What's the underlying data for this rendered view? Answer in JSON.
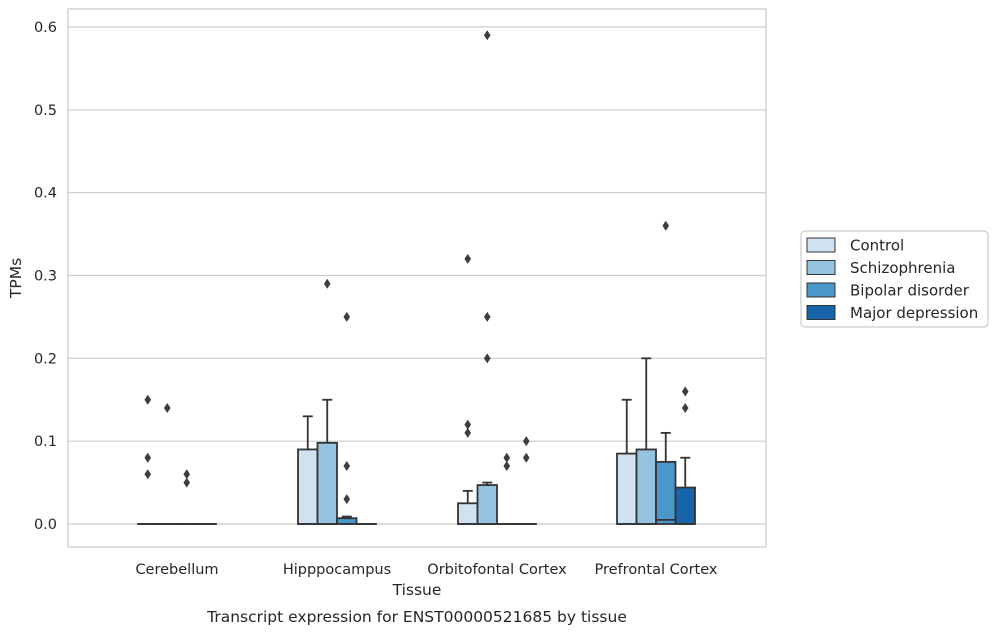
{
  "chart_data": {
    "type": "box",
    "title": "",
    "caption": "Transcript expression for ENST00000521685 by tissue",
    "xlabel": "Tissue",
    "ylabel": "TPMs",
    "ylim": [
      -0.028,
      0.62
    ],
    "yticks": [
      "0.0",
      "0.1",
      "0.2",
      "0.3",
      "0.4",
      "0.5",
      "0.6"
    ],
    "grid": "horizontal",
    "legend_position": "right",
    "categories": [
      "Cerebellum",
      "Hipppocampus",
      "Orbitofontal Cortex",
      "Prefrontal Cortex"
    ],
    "series": [
      {
        "name": "Control",
        "color": "#d0e1f2",
        "boxes": [
          {
            "q1": 0,
            "median": 0,
            "q3": 0,
            "whisker_low": 0,
            "whisker_high": 0,
            "outliers": [
              0.15,
              0.08,
              0.06
            ]
          },
          {
            "q1": 0,
            "median": 0,
            "q3": 0.09,
            "whisker_low": 0,
            "whisker_high": 0.13,
            "outliers": []
          },
          {
            "q1": 0,
            "median": 0,
            "q3": 0.025,
            "whisker_low": 0,
            "whisker_high": 0.04,
            "outliers": [
              0.32,
              0.12,
              0.11
            ]
          },
          {
            "q1": 0,
            "median": 0,
            "q3": 0.085,
            "whisker_low": 0,
            "whisker_high": 0.15,
            "outliers": []
          }
        ]
      },
      {
        "name": "Schizophrenia",
        "color": "#94c4df",
        "boxes": [
          {
            "q1": 0,
            "median": 0,
            "q3": 0,
            "whisker_low": 0,
            "whisker_high": 0,
            "outliers": [
              0.14
            ]
          },
          {
            "q1": 0,
            "median": 0,
            "q3": 0.098,
            "whisker_low": 0,
            "whisker_high": 0.15,
            "outliers": [
              0.29
            ]
          },
          {
            "q1": 0,
            "median": 0,
            "q3": 0.047,
            "whisker_low": 0,
            "whisker_high": 0.05,
            "outliers": [
              0.59,
              0.25,
              0.2
            ]
          },
          {
            "q1": 0,
            "median": 0,
            "q3": 0.09,
            "whisker_low": 0,
            "whisker_high": 0.2,
            "outliers": []
          }
        ]
      },
      {
        "name": "Bipolar disorder",
        "color": "#4a98c9",
        "boxes": [
          {
            "q1": 0,
            "median": 0,
            "q3": 0,
            "whisker_low": 0,
            "whisker_high": 0,
            "outliers": [
              0.06,
              0.05
            ]
          },
          {
            "q1": 0,
            "median": 0,
            "q3": 0.007,
            "whisker_low": 0,
            "whisker_high": 0.009,
            "outliers": [
              0.25,
              0.07,
              0.03
            ]
          },
          {
            "q1": 0,
            "median": 0,
            "q3": 0,
            "whisker_low": 0,
            "whisker_high": 0,
            "outliers": [
              0.08,
              0.07
            ]
          },
          {
            "q1": 0,
            "median": 0.005,
            "q3": 0.075,
            "whisker_low": 0,
            "whisker_high": 0.11,
            "outliers": [
              0.36
            ]
          }
        ]
      },
      {
        "name": "Major depression",
        "color": "#1764ab",
        "boxes": [
          {
            "q1": 0,
            "median": 0,
            "q3": 0,
            "whisker_low": 0,
            "whisker_high": 0,
            "outliers": []
          },
          {
            "q1": 0,
            "median": 0,
            "q3": 0,
            "whisker_low": 0,
            "whisker_high": 0,
            "outliers": []
          },
          {
            "q1": 0,
            "median": 0,
            "q3": 0,
            "whisker_low": 0,
            "whisker_high": 0,
            "outliers": [
              0.1,
              0.08
            ]
          },
          {
            "q1": 0,
            "median": 0,
            "q3": 0.044,
            "whisker_low": 0,
            "whisker_high": 0.08,
            "outliers": [
              0.16,
              0.14
            ]
          }
        ]
      }
    ]
  }
}
